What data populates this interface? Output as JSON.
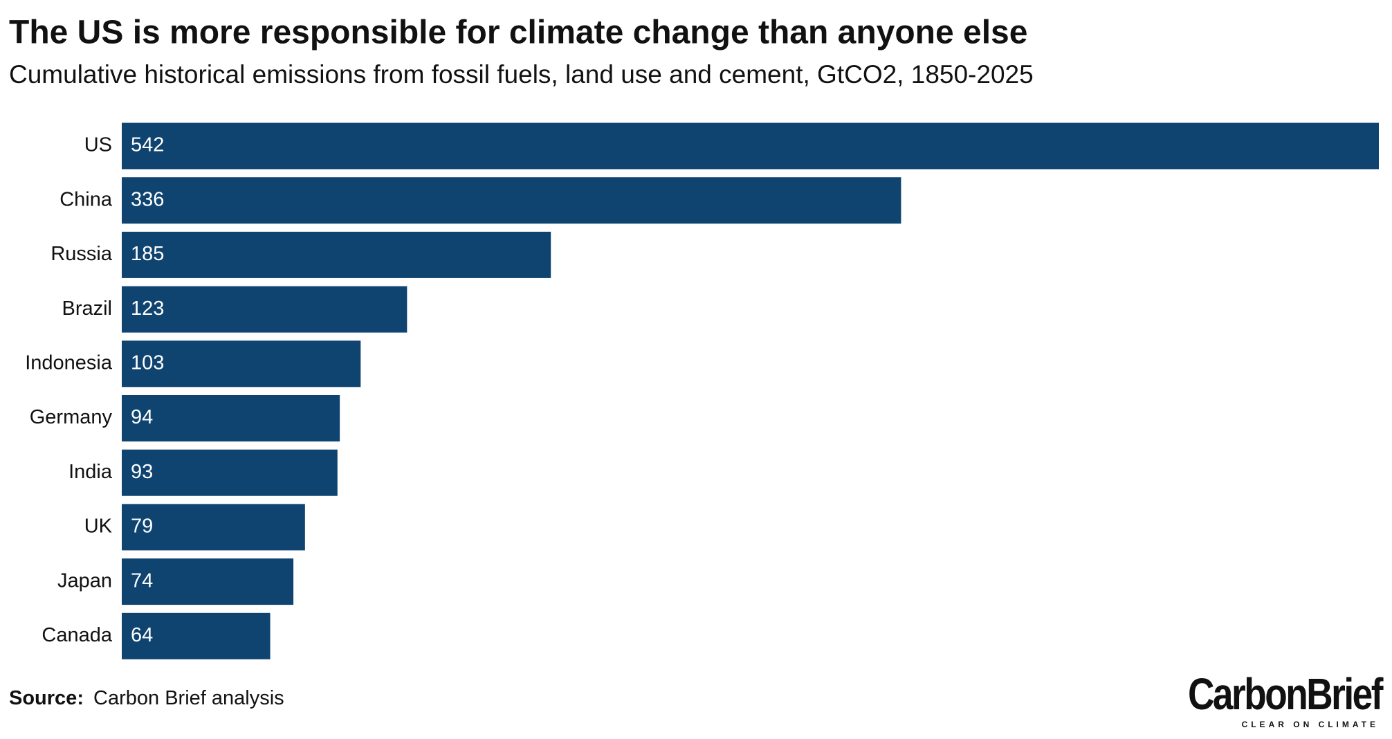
{
  "chart_data": {
    "type": "bar",
    "orientation": "horizontal",
    "title": "The US is more responsible for climate change than anyone else",
    "subtitle": "Cumulative historical emissions from fossil fuels, land use and cement, GtCO2, 1850-2025",
    "categories": [
      "US",
      "China",
      "Russia",
      "Brazil",
      "Indonesia",
      "Germany",
      "India",
      "UK",
      "Japan",
      "Canada"
    ],
    "values": [
      542,
      336,
      185,
      123,
      103,
      94,
      93,
      79,
      74,
      64
    ],
    "color": "#0f4470"
  },
  "source": {
    "label": "Source:",
    "text": "Carbon Brief analysis"
  },
  "logo": {
    "name": "CarbonBrief",
    "tagline": "CLEAR ON CLIMATE"
  }
}
